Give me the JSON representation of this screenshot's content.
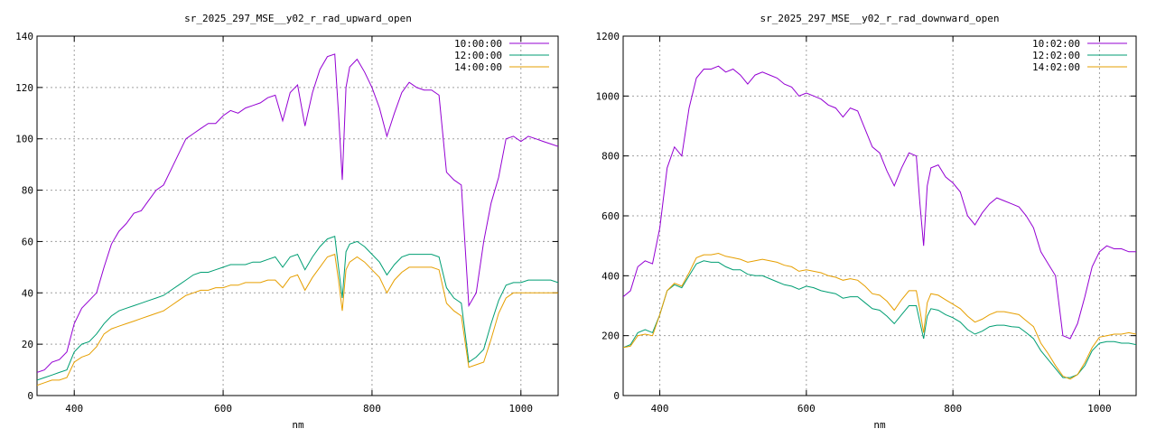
{
  "chart_data": [
    {
      "type": "line",
      "title": "sr_2025_297_MSE__y02_r_rad_upward_open",
      "xlabel": "nm",
      "ylabel": "",
      "xlim": [
        350,
        1050
      ],
      "ylim": [
        0,
        140
      ],
      "xticks": [
        400,
        600,
        800,
        1000
      ],
      "yticks": [
        0,
        20,
        40,
        60,
        80,
        100,
        120,
        140
      ],
      "grid": true,
      "legend_position": "top-right",
      "series": [
        {
          "name": "10:00:00",
          "color": "#9400d3",
          "x": [
            350,
            360,
            370,
            380,
            390,
            400,
            410,
            420,
            430,
            440,
            450,
            460,
            470,
            480,
            490,
            500,
            510,
            520,
            530,
            540,
            550,
            560,
            570,
            580,
            590,
            600,
            610,
            620,
            630,
            640,
            650,
            660,
            670,
            680,
            690,
            700,
            710,
            720,
            730,
            740,
            750,
            755,
            760,
            765,
            770,
            780,
            790,
            800,
            810,
            820,
            830,
            840,
            850,
            860,
            870,
            880,
            890,
            900,
            910,
            920,
            930,
            940,
            950,
            960,
            970,
            980,
            990,
            1000,
            1010,
            1020,
            1030,
            1040,
            1050
          ],
          "y": [
            9,
            10,
            13,
            14,
            17,
            28,
            34,
            37,
            40,
            50,
            59,
            64,
            67,
            71,
            72,
            76,
            80,
            82,
            88,
            94,
            100,
            102,
            104,
            106,
            106,
            109,
            111,
            110,
            112,
            113,
            114,
            116,
            117,
            107,
            118,
            121,
            105,
            118,
            127,
            132,
            133,
            110,
            84,
            120,
            128,
            131,
            126,
            120,
            112,
            101,
            110,
            118,
            122,
            120,
            119,
            119,
            117,
            87,
            84,
            82,
            35,
            40,
            60,
            75,
            85,
            100,
            101,
            99,
            101,
            100,
            99,
            98,
            97
          ]
        },
        {
          "name": "12:00:00",
          "color": "#009e73",
          "x": [
            350,
            360,
            370,
            380,
            390,
            400,
            410,
            420,
            430,
            440,
            450,
            460,
            470,
            480,
            490,
            500,
            510,
            520,
            530,
            540,
            550,
            560,
            570,
            580,
            590,
            600,
            610,
            620,
            630,
            640,
            650,
            660,
            670,
            680,
            690,
            700,
            710,
            720,
            730,
            740,
            750,
            755,
            760,
            765,
            770,
            780,
            790,
            800,
            810,
            820,
            830,
            840,
            850,
            860,
            870,
            880,
            890,
            900,
            910,
            920,
            930,
            940,
            950,
            960,
            970,
            980,
            990,
            1000,
            1010,
            1020,
            1030,
            1040,
            1050
          ],
          "y": [
            6,
            7,
            8,
            9,
            10,
            17,
            20,
            21,
            24,
            28,
            31,
            33,
            34,
            35,
            36,
            37,
            38,
            39,
            41,
            43,
            45,
            47,
            48,
            48,
            49,
            50,
            51,
            51,
            51,
            52,
            52,
            53,
            54,
            50,
            54,
            55,
            49,
            54,
            58,
            61,
            62,
            50,
            38,
            56,
            59,
            60,
            58,
            55,
            52,
            47,
            51,
            54,
            55,
            55,
            55,
            55,
            54,
            42,
            38,
            36,
            13,
            15,
            18,
            28,
            37,
            43,
            44,
            44,
            45,
            45,
            45,
            45,
            44
          ]
        },
        {
          "name": "14:00:00",
          "color": "#e69f00",
          "x": [
            350,
            360,
            370,
            380,
            390,
            400,
            410,
            420,
            430,
            440,
            450,
            460,
            470,
            480,
            490,
            500,
            510,
            520,
            530,
            540,
            550,
            560,
            570,
            580,
            590,
            600,
            610,
            620,
            630,
            640,
            650,
            660,
            670,
            680,
            690,
            700,
            710,
            720,
            730,
            740,
            750,
            755,
            760,
            765,
            770,
            780,
            790,
            800,
            810,
            820,
            830,
            840,
            850,
            860,
            870,
            880,
            890,
            900,
            910,
            920,
            930,
            940,
            950,
            960,
            970,
            980,
            990,
            1000,
            1010,
            1020,
            1030,
            1040,
            1050
          ],
          "y": [
            4,
            5,
            6,
            6,
            7,
            13,
            15,
            16,
            19,
            24,
            26,
            27,
            28,
            29,
            30,
            31,
            32,
            33,
            35,
            37,
            39,
            40,
            41,
            41,
            42,
            42,
            43,
            43,
            44,
            44,
            44,
            45,
            45,
            42,
            46,
            47,
            41,
            46,
            50,
            54,
            55,
            45,
            33,
            49,
            52,
            54,
            52,
            49,
            46,
            40,
            45,
            48,
            50,
            50,
            50,
            50,
            49,
            36,
            33,
            31,
            11,
            12,
            13,
            22,
            32,
            38,
            40,
            40,
            40,
            40,
            40,
            40,
            40
          ]
        }
      ]
    },
    {
      "type": "line",
      "title": "sr_2025_297_MSE__y02_r_rad_downward_open",
      "xlabel": "nm",
      "ylabel": "",
      "xlim": [
        350,
        1050
      ],
      "ylim": [
        0,
        1200
      ],
      "xticks": [
        400,
        600,
        800,
        1000
      ],
      "yticks": [
        0,
        200,
        400,
        600,
        800,
        1000,
        1200
      ],
      "grid": true,
      "legend_position": "top-right",
      "series": [
        {
          "name": "10:02:00",
          "color": "#9400d3",
          "x": [
            350,
            360,
            370,
            380,
            390,
            400,
            410,
            420,
            430,
            440,
            450,
            460,
            470,
            480,
            490,
            500,
            510,
            520,
            530,
            540,
            550,
            560,
            570,
            580,
            590,
            600,
            610,
            620,
            630,
            640,
            650,
            660,
            670,
            680,
            690,
            700,
            710,
            720,
            730,
            740,
            750,
            755,
            760,
            765,
            770,
            780,
            790,
            800,
            810,
            820,
            830,
            840,
            850,
            860,
            870,
            880,
            890,
            900,
            910,
            920,
            930,
            940,
            950,
            960,
            970,
            980,
            990,
            1000,
            1010,
            1020,
            1030,
            1040,
            1050
          ],
          "y": [
            330,
            350,
            430,
            450,
            440,
            560,
            760,
            830,
            800,
            960,
            1060,
            1090,
            1090,
            1100,
            1080,
            1090,
            1070,
            1040,
            1070,
            1080,
            1070,
            1060,
            1040,
            1030,
            1000,
            1010,
            1000,
            990,
            970,
            960,
            930,
            960,
            950,
            890,
            830,
            810,
            750,
            700,
            760,
            810,
            800,
            640,
            500,
            700,
            760,
            770,
            730,
            710,
            680,
            600,
            570,
            610,
            640,
            660,
            650,
            640,
            630,
            600,
            560,
            480,
            440,
            400,
            200,
            190,
            240,
            330,
            430,
            480,
            500,
            490,
            490,
            480,
            480
          ]
        },
        {
          "name": "12:02:00",
          "color": "#009e73",
          "x": [
            350,
            360,
            370,
            380,
            390,
            400,
            410,
            420,
            430,
            440,
            450,
            460,
            470,
            480,
            490,
            500,
            510,
            520,
            530,
            540,
            550,
            560,
            570,
            580,
            590,
            600,
            610,
            620,
            630,
            640,
            650,
            660,
            670,
            680,
            690,
            700,
            710,
            720,
            730,
            740,
            750,
            755,
            760,
            765,
            770,
            780,
            790,
            800,
            810,
            820,
            830,
            840,
            850,
            860,
            870,
            880,
            890,
            900,
            910,
            920,
            930,
            940,
            950,
            960,
            970,
            980,
            990,
            1000,
            1010,
            1020,
            1030,
            1040,
            1050
          ],
          "y": [
            160,
            170,
            210,
            220,
            210,
            270,
            350,
            370,
            360,
            400,
            440,
            450,
            445,
            445,
            430,
            420,
            420,
            405,
            400,
            400,
            390,
            380,
            370,
            365,
            355,
            365,
            360,
            350,
            345,
            340,
            325,
            330,
            330,
            310,
            290,
            285,
            265,
            240,
            270,
            300,
            300,
            245,
            190,
            265,
            290,
            285,
            270,
            260,
            245,
            220,
            205,
            215,
            230,
            235,
            235,
            230,
            228,
            210,
            190,
            150,
            120,
            90,
            60,
            60,
            70,
            100,
            150,
            175,
            180,
            180,
            175,
            175,
            170
          ]
        },
        {
          "name": "14:02:00",
          "color": "#e69f00",
          "x": [
            350,
            360,
            370,
            380,
            390,
            400,
            410,
            420,
            430,
            440,
            450,
            460,
            470,
            480,
            490,
            500,
            510,
            520,
            530,
            540,
            550,
            560,
            570,
            580,
            590,
            600,
            610,
            620,
            630,
            640,
            650,
            660,
            670,
            680,
            690,
            700,
            710,
            720,
            730,
            740,
            750,
            755,
            760,
            765,
            770,
            780,
            790,
            800,
            810,
            820,
            830,
            840,
            850,
            860,
            870,
            880,
            890,
            900,
            910,
            920,
            930,
            940,
            950,
            960,
            970,
            980,
            990,
            1000,
            1010,
            1020,
            1030,
            1040,
            1050
          ],
          "y": [
            160,
            165,
            200,
            205,
            200,
            270,
            350,
            375,
            365,
            410,
            460,
            470,
            470,
            475,
            465,
            460,
            455,
            445,
            450,
            455,
            450,
            445,
            435,
            430,
            415,
            420,
            415,
            410,
            400,
            395,
            385,
            390,
            385,
            365,
            340,
            335,
            315,
            285,
            320,
            350,
            350,
            285,
            210,
            310,
            340,
            335,
            320,
            305,
            290,
            265,
            245,
            255,
            270,
            280,
            280,
            275,
            270,
            250,
            230,
            175,
            140,
            100,
            65,
            55,
            70,
            110,
            160,
            195,
            200,
            205,
            205,
            210,
            205
          ]
        }
      ]
    }
  ]
}
